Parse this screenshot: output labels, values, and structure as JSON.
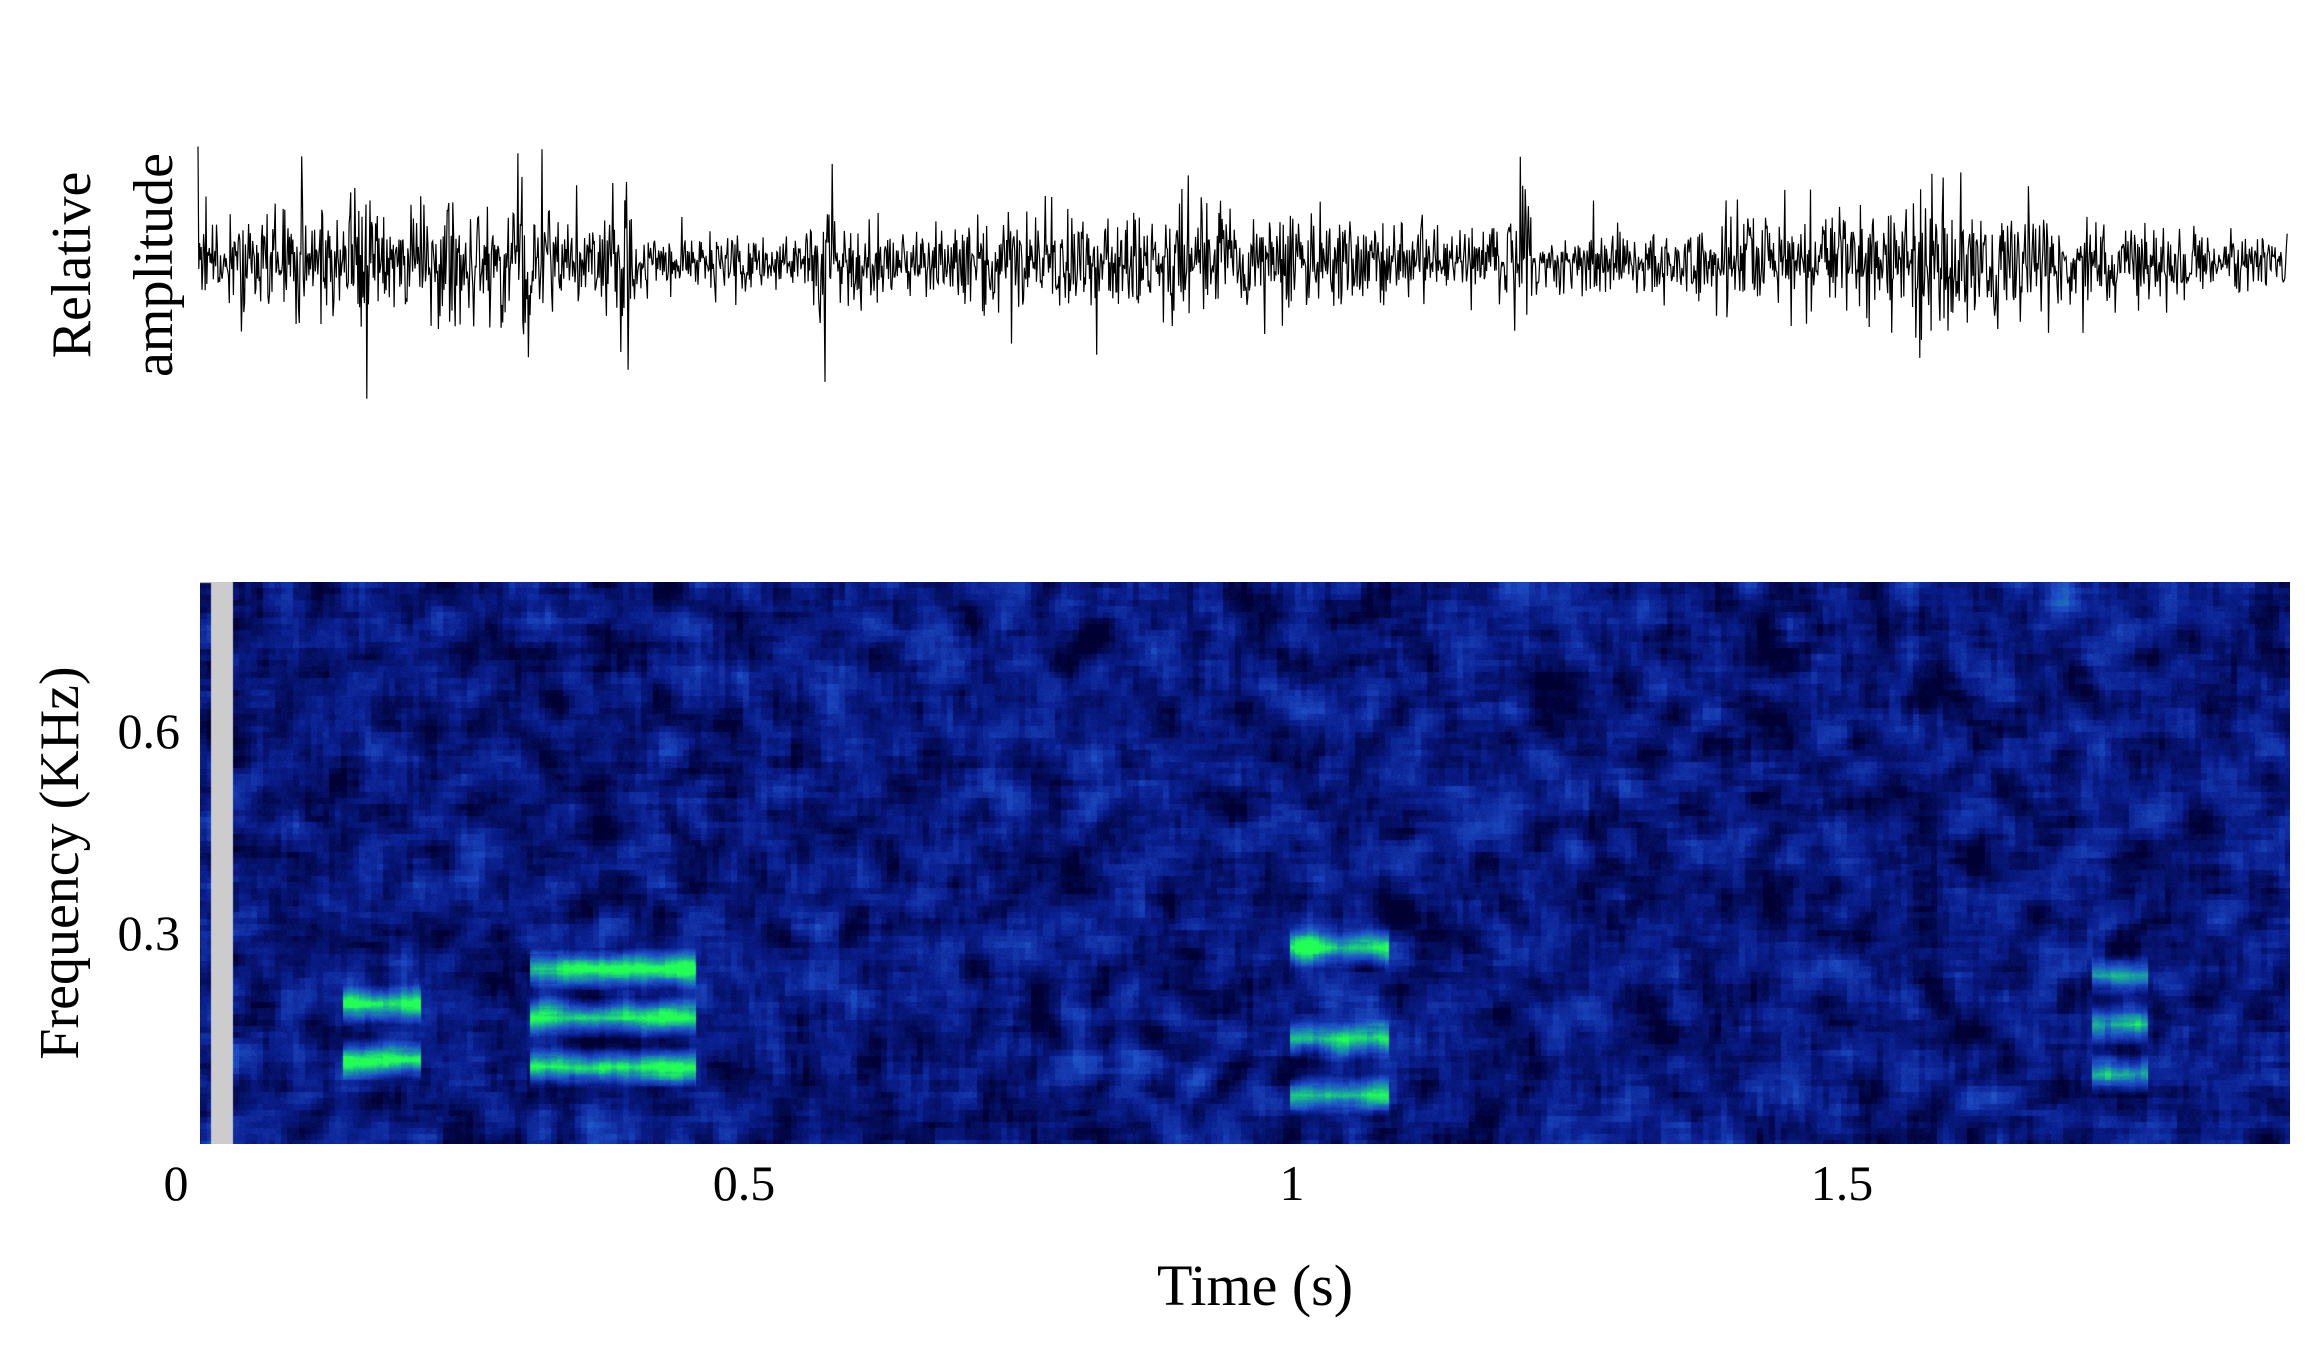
{
  "chart_data": [
    {
      "type": "line",
      "panel": "waveform",
      "title": "",
      "ylabel_lines": [
        "Relative",
        "amplitude"
      ],
      "xlabel": "",
      "xlim": [
        0,
        1.9
      ],
      "color": "#000000",
      "description_values": {
        "baseline": 0.0,
        "envelope_typical": 0.3,
        "burst_times_s": [
          0.15,
          0.3,
          0.38,
          0.57,
          1.2,
          1.58
        ]
      }
    },
    {
      "type": "heatmap",
      "panel": "spectrogram",
      "title": "",
      "xlabel": "Time (s)",
      "ylabel": "Frequency (KHz)",
      "xlim": [
        0,
        1.9
      ],
      "ylim": [
        0,
        0.8
      ],
      "x_ticks": [
        "0",
        "0.5",
        "1",
        "1.5"
      ],
      "x_tick_values": [
        0,
        0.5,
        1,
        1.5
      ],
      "y_ticks": [
        "0.3",
        "0.6"
      ],
      "y_tick_values": [
        0.3,
        0.6
      ],
      "colormap": [
        "#000033",
        "#0a1f8f",
        "#1e4fc8",
        "#18a0a0",
        "#22ff55"
      ],
      "frame_color": "#cccccc",
      "active_range_s": [
        0.03,
        1.91
      ],
      "harmonic_events": [
        {
          "t0": 0.13,
          "t1": 0.2,
          "freqs": [
            0.12,
            0.2
          ],
          "strength": 0.85
        },
        {
          "t0": 0.3,
          "t1": 0.45,
          "freqs": [
            0.11,
            0.18,
            0.25
          ],
          "strength": 0.85
        },
        {
          "t0": 0.99,
          "t1": 1.08,
          "freqs": [
            0.07,
            0.15,
            0.28
          ],
          "strength": 0.7
        },
        {
          "t0": 1.72,
          "t1": 1.77,
          "freqs": [
            0.1,
            0.17,
            0.24
          ],
          "strength": 0.6
        }
      ]
    }
  ],
  "labels": {
    "waveform_ylabel_1": "Relative",
    "waveform_ylabel_2": "amplitude",
    "spectrogram_ylabel": "Frequency (KHz)",
    "xlabel": "Time (s)",
    "xtick_0": "0",
    "xtick_1": "0.5",
    "xtick_2": "1",
    "xtick_3": "1.5",
    "ytick_0": "0.3",
    "ytick_1": "0.6"
  }
}
